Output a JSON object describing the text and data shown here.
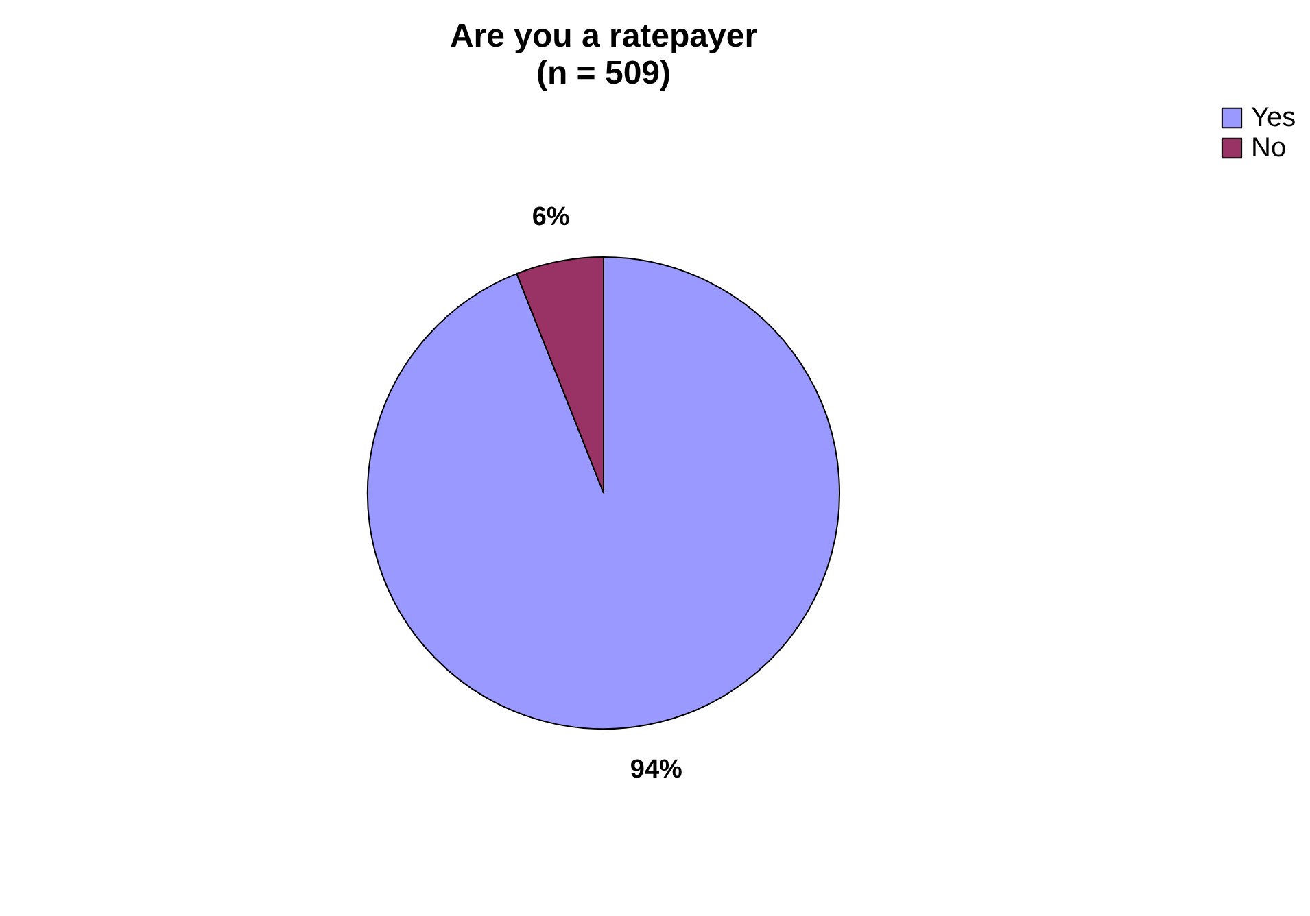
{
  "chart_data": {
    "type": "pie",
    "title": "Are you a ratepayer",
    "subtitle": "(n = 509)",
    "categories": [
      "Yes",
      "No"
    ],
    "values": [
      94,
      6
    ],
    "colors": [
      "#9999ff",
      "#993366"
    ],
    "value_labels": [
      "94%",
      "6%"
    ],
    "legend": "right"
  }
}
